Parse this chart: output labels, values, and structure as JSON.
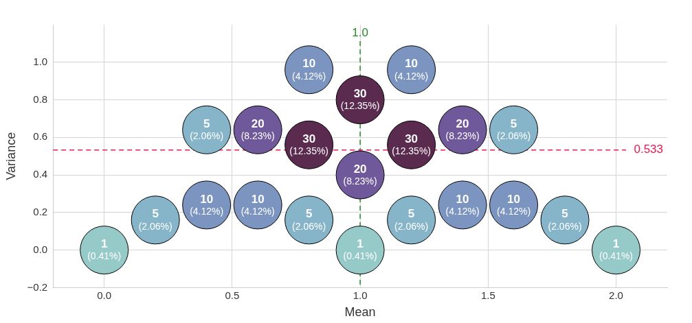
{
  "chart_data": {
    "type": "scatter",
    "xlabel": "Mean",
    "ylabel": "Variance",
    "x": [
      0,
      0.2,
      0.4,
      0.4,
      0.6,
      0.6,
      0.8,
      0.8,
      0.8,
      1.0,
      1.0,
      1.0,
      1.2,
      1.2,
      1.2,
      1.4,
      1.4,
      1.6,
      1.6,
      1.8,
      2.0
    ],
    "values": [
      0,
      0.16,
      0.24,
      0.64,
      0.24,
      0.64,
      0.16,
      0.56,
      0.96,
      0,
      0.4,
      0.8,
      0.16,
      0.56,
      0.96,
      0.24,
      0.64,
      0.24,
      0.64,
      0.16,
      0
    ],
    "colors": [
      "#96cac8",
      "#86b5c9",
      "#7c95c0",
      "#86b5c9",
      "#7c95c0",
      "#70599a",
      "#86b5c9",
      "#5a2a4f",
      "#7c95c0",
      "#96cac8",
      "#70599a",
      "#5a2a4f",
      "#86b5c9",
      "#5a2a4f",
      "#7c95c0",
      "#7c95c0",
      "#70599a",
      "#7c95c0",
      "#86b5c9",
      "#86b5c9",
      "#96cac8"
    ],
    "value_labels": [
      "1\n(0.41%)",
      "5\n(2.06%)",
      "10\n(4.12%)",
      "5\n(2.06%)",
      "10\n(4.12%)",
      "20\n(8.23%)",
      "5\n(2.06%)",
      "30\n(12.35%)",
      "10\n(4.12%)",
      "1\n(0.41%)",
      "20\n(8.23%)",
      "30\n(12.35%)",
      "5\n(2.06%)",
      "30\n(12.35%)",
      "10\n(4.12%)",
      "10\n(4.12%)",
      "20\n(8.23%)",
      "10\n(4.12%)",
      "5\n(2.06%)",
      "5\n(2.06%)",
      "1\n(0.41%)"
    ],
    "xlim": [
      -0.2,
      2.2
    ],
    "xticks": [
      {
        "value": 0,
        "label": "0.0"
      },
      {
        "value": 0.5,
        "label": "0.5"
      },
      {
        "value": 1,
        "label": "1.0"
      },
      {
        "value": 1.5,
        "label": "1.5"
      },
      {
        "value": 2,
        "label": "2.0"
      }
    ],
    "ylim": [
      -0.2,
      1.2
    ],
    "yticks": [
      {
        "value": -0.2,
        "label": "−0.2"
      },
      {
        "value": 0,
        "label": "0.0"
      },
      {
        "value": 0.2,
        "label": "0.2"
      },
      {
        "value": 0.4,
        "label": "0.4"
      },
      {
        "value": 0.6,
        "label": "0.6"
      },
      {
        "value": 0.8,
        "label": "0.8"
      },
      {
        "value": 1,
        "label": "1.0"
      }
    ],
    "ref_lines": [
      {
        "axis": "x",
        "value": 1.0,
        "label": "1.0",
        "color": "#228b22",
        "line_style": "dashed"
      },
      {
        "axis": "y",
        "value": 0.533,
        "label": "0.533",
        "color": "#e8194f",
        "line_style": "dashed"
      }
    ],
    "grid": true,
    "legend": false,
    "marker": "circle"
  }
}
